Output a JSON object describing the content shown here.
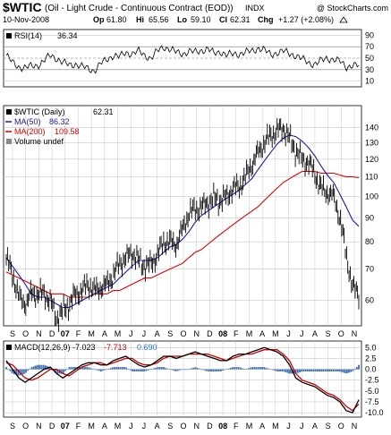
{
  "header": {
    "symbol": "$WTIC",
    "name": "(Oil - Light Crude - Continuous Contract (EOD))",
    "exchange": "INDX",
    "watermark": "@ StockCharts.com",
    "date": "10-Nov-2008",
    "open_label": "Op",
    "open": "61.80",
    "high_label": "Hi",
    "high": "65.56",
    "low_label": "Lo",
    "low": "59.10",
    "close_label": "Cl",
    "close": "62.31",
    "change_label": "Chg",
    "change": "+1.27 (+2.08%)",
    "change_arrow": "up-arrow-icon"
  },
  "colors": {
    "price": "#000000",
    "ma50": "#1a1aa8",
    "ma200": "#dd0000",
    "macd": "#000000",
    "signal": "#cc0000",
    "histogram": "#3b6fb6",
    "histogram_text": "#2277cc",
    "grid": "#c8c8c8",
    "ref_line": "#777777"
  },
  "chart_data": [
    {
      "type": "line",
      "indicator": "RSI",
      "legend": "RSI(14)",
      "legend_value": "36.34",
      "yticks": [
        10,
        30,
        50,
        70,
        90
      ],
      "ylim": [
        0,
        100
      ],
      "reference_lines": [
        30,
        50,
        70
      ],
      "series": [
        {
          "name": "RSI(14)",
          "values": [
            55,
            42,
            35,
            33,
            36,
            38,
            45,
            55,
            50,
            42,
            38,
            40,
            35,
            32,
            28,
            40,
            48,
            55,
            52,
            60,
            58,
            62,
            55,
            50,
            62,
            70,
            66,
            60,
            58,
            62,
            60,
            64,
            66,
            58,
            62,
            55,
            57,
            58,
            60,
            62,
            68,
            64,
            56,
            60,
            62,
            58,
            55,
            48,
            42,
            40,
            45,
            50,
            48,
            44,
            35,
            38,
            36
          ]
        }
      ]
    },
    {
      "type": "line",
      "indicator": "price",
      "legend": "$WTIC (Daily)",
      "legend_value": "62.31",
      "yscale": "log",
      "yticks": [
        60,
        70,
        80,
        90,
        100,
        110,
        120,
        130,
        140
      ],
      "ylim": [
        53,
        156
      ],
      "xticks": [
        "S",
        "O",
        "N",
        "D",
        "07",
        "F",
        "M",
        "A",
        "M",
        "J",
        "J",
        "A",
        "S",
        "O",
        "N",
        "D",
        "08",
        "F",
        "M",
        "A",
        "M",
        "J",
        "J",
        "A",
        "S",
        "O",
        "N"
      ],
      "major_xticks": [
        "07",
        "08"
      ],
      "series": [
        {
          "name": "$WTIC (Daily)",
          "values": [
            74,
            68,
            61,
            59,
            62,
            62,
            62,
            60,
            55,
            57,
            59,
            62,
            63,
            65,
            63,
            64,
            65,
            68,
            72,
            74,
            76,
            73,
            71,
            72,
            75,
            80,
            80,
            79,
            85,
            92,
            94,
            95,
            97,
            99,
            98,
            100,
            104,
            105,
            110,
            117,
            124,
            130,
            135,
            138,
            140,
            133,
            125,
            120,
            118,
            112,
            104,
            102,
            100,
            90,
            75,
            64,
            62
          ]
        },
        {
          "name": "MA(50)",
          "legend_value": "86.32",
          "values": [
            74,
            71,
            68,
            65,
            62,
            61,
            61,
            60,
            59,
            58,
            58,
            59,
            60,
            61,
            62,
            63,
            64,
            65,
            67,
            69,
            71,
            73,
            73,
            73,
            74,
            76,
            78,
            79,
            81,
            84,
            88,
            91,
            93,
            95,
            97,
            99,
            101,
            103,
            106,
            109,
            114,
            119,
            124,
            129,
            133,
            135,
            134,
            131,
            127,
            122,
            116,
            111,
            107,
            101,
            95,
            89,
            86.32
          ]
        },
        {
          "name": "MA(200)",
          "legend_value": "109.58",
          "values": [
            69,
            68,
            67,
            66,
            65,
            64,
            63,
            62,
            62,
            62,
            61,
            61,
            61,
            61,
            62,
            62,
            62,
            63,
            63,
            64,
            65,
            66,
            67,
            67,
            68,
            69,
            70,
            71,
            72,
            74,
            76,
            77,
            79,
            81,
            83,
            85,
            87,
            89,
            91,
            93,
            95,
            98,
            101,
            104,
            107,
            109,
            111,
            113,
            113,
            113,
            112,
            112,
            112,
            111,
            110,
            110,
            109.58
          ]
        }
      ],
      "extra_legend": "Volume undef"
    },
    {
      "type": "line",
      "indicator": "MACD",
      "legend": "MACD(12,26,9)",
      "legend_macd": "-7.023",
      "legend_signal": "-7.713",
      "legend_hist": "0.690",
      "yticks": [
        5.0,
        2.5,
        0.0,
        -2.5,
        -5.0,
        -7.5,
        -10.0
      ],
      "ytick_labels": [
        "5.0",
        "2.5",
        "0.0",
        "-2.5",
        "-5.0",
        "-7.5",
        "-10.0"
      ],
      "ylim": [
        -11,
        6.5
      ],
      "xticks": [
        "S",
        "O",
        "N",
        "D",
        "07",
        "F",
        "M",
        "A",
        "M",
        "J",
        "J",
        "A",
        "S",
        "O",
        "N",
        "D",
        "08",
        "F",
        "M",
        "A",
        "M",
        "J",
        "J",
        "A",
        "S",
        "O",
        "N"
      ],
      "major_xticks": [
        "07",
        "08"
      ],
      "series": [
        {
          "name": "MACD",
          "values": [
            2,
            0,
            -2,
            -3,
            -2,
            -1,
            0,
            0.5,
            -1,
            -2,
            -1,
            0,
            1,
            1.5,
            1.5,
            1,
            1,
            2,
            2.5,
            3,
            2,
            1,
            0.5,
            1,
            2,
            3,
            3,
            2.5,
            3,
            3.5,
            4,
            3.5,
            3,
            2.5,
            2,
            2,
            3,
            3.5,
            3.5,
            4,
            4.5,
            5,
            4.5,
            4,
            3,
            1,
            -2,
            -3,
            -3.5,
            -4,
            -5,
            -6,
            -6.5,
            -7.5,
            -9.5,
            -10,
            -7
          ]
        },
        {
          "name": "Signal",
          "values": [
            1.5,
            1,
            -0.5,
            -2,
            -2.5,
            -2,
            -1,
            0,
            0,
            -1,
            -1.5,
            -0.5,
            0.5,
            1,
            1.5,
            1.5,
            1,
            1.5,
            2,
            2.5,
            2.5,
            1.5,
            1,
            1,
            1.5,
            2.5,
            3,
            3,
            3,
            3.5,
            3.5,
            3.5,
            3.5,
            3,
            2.5,
            2,
            2.5,
            3,
            3.5,
            3.5,
            4,
            4.5,
            4.5,
            4.5,
            3.5,
            2,
            -1,
            -2.5,
            -3,
            -3.5,
            -4.5,
            -5.5,
            -6,
            -7,
            -8.5,
            -9.5,
            -8
          ]
        }
      ]
    }
  ]
}
